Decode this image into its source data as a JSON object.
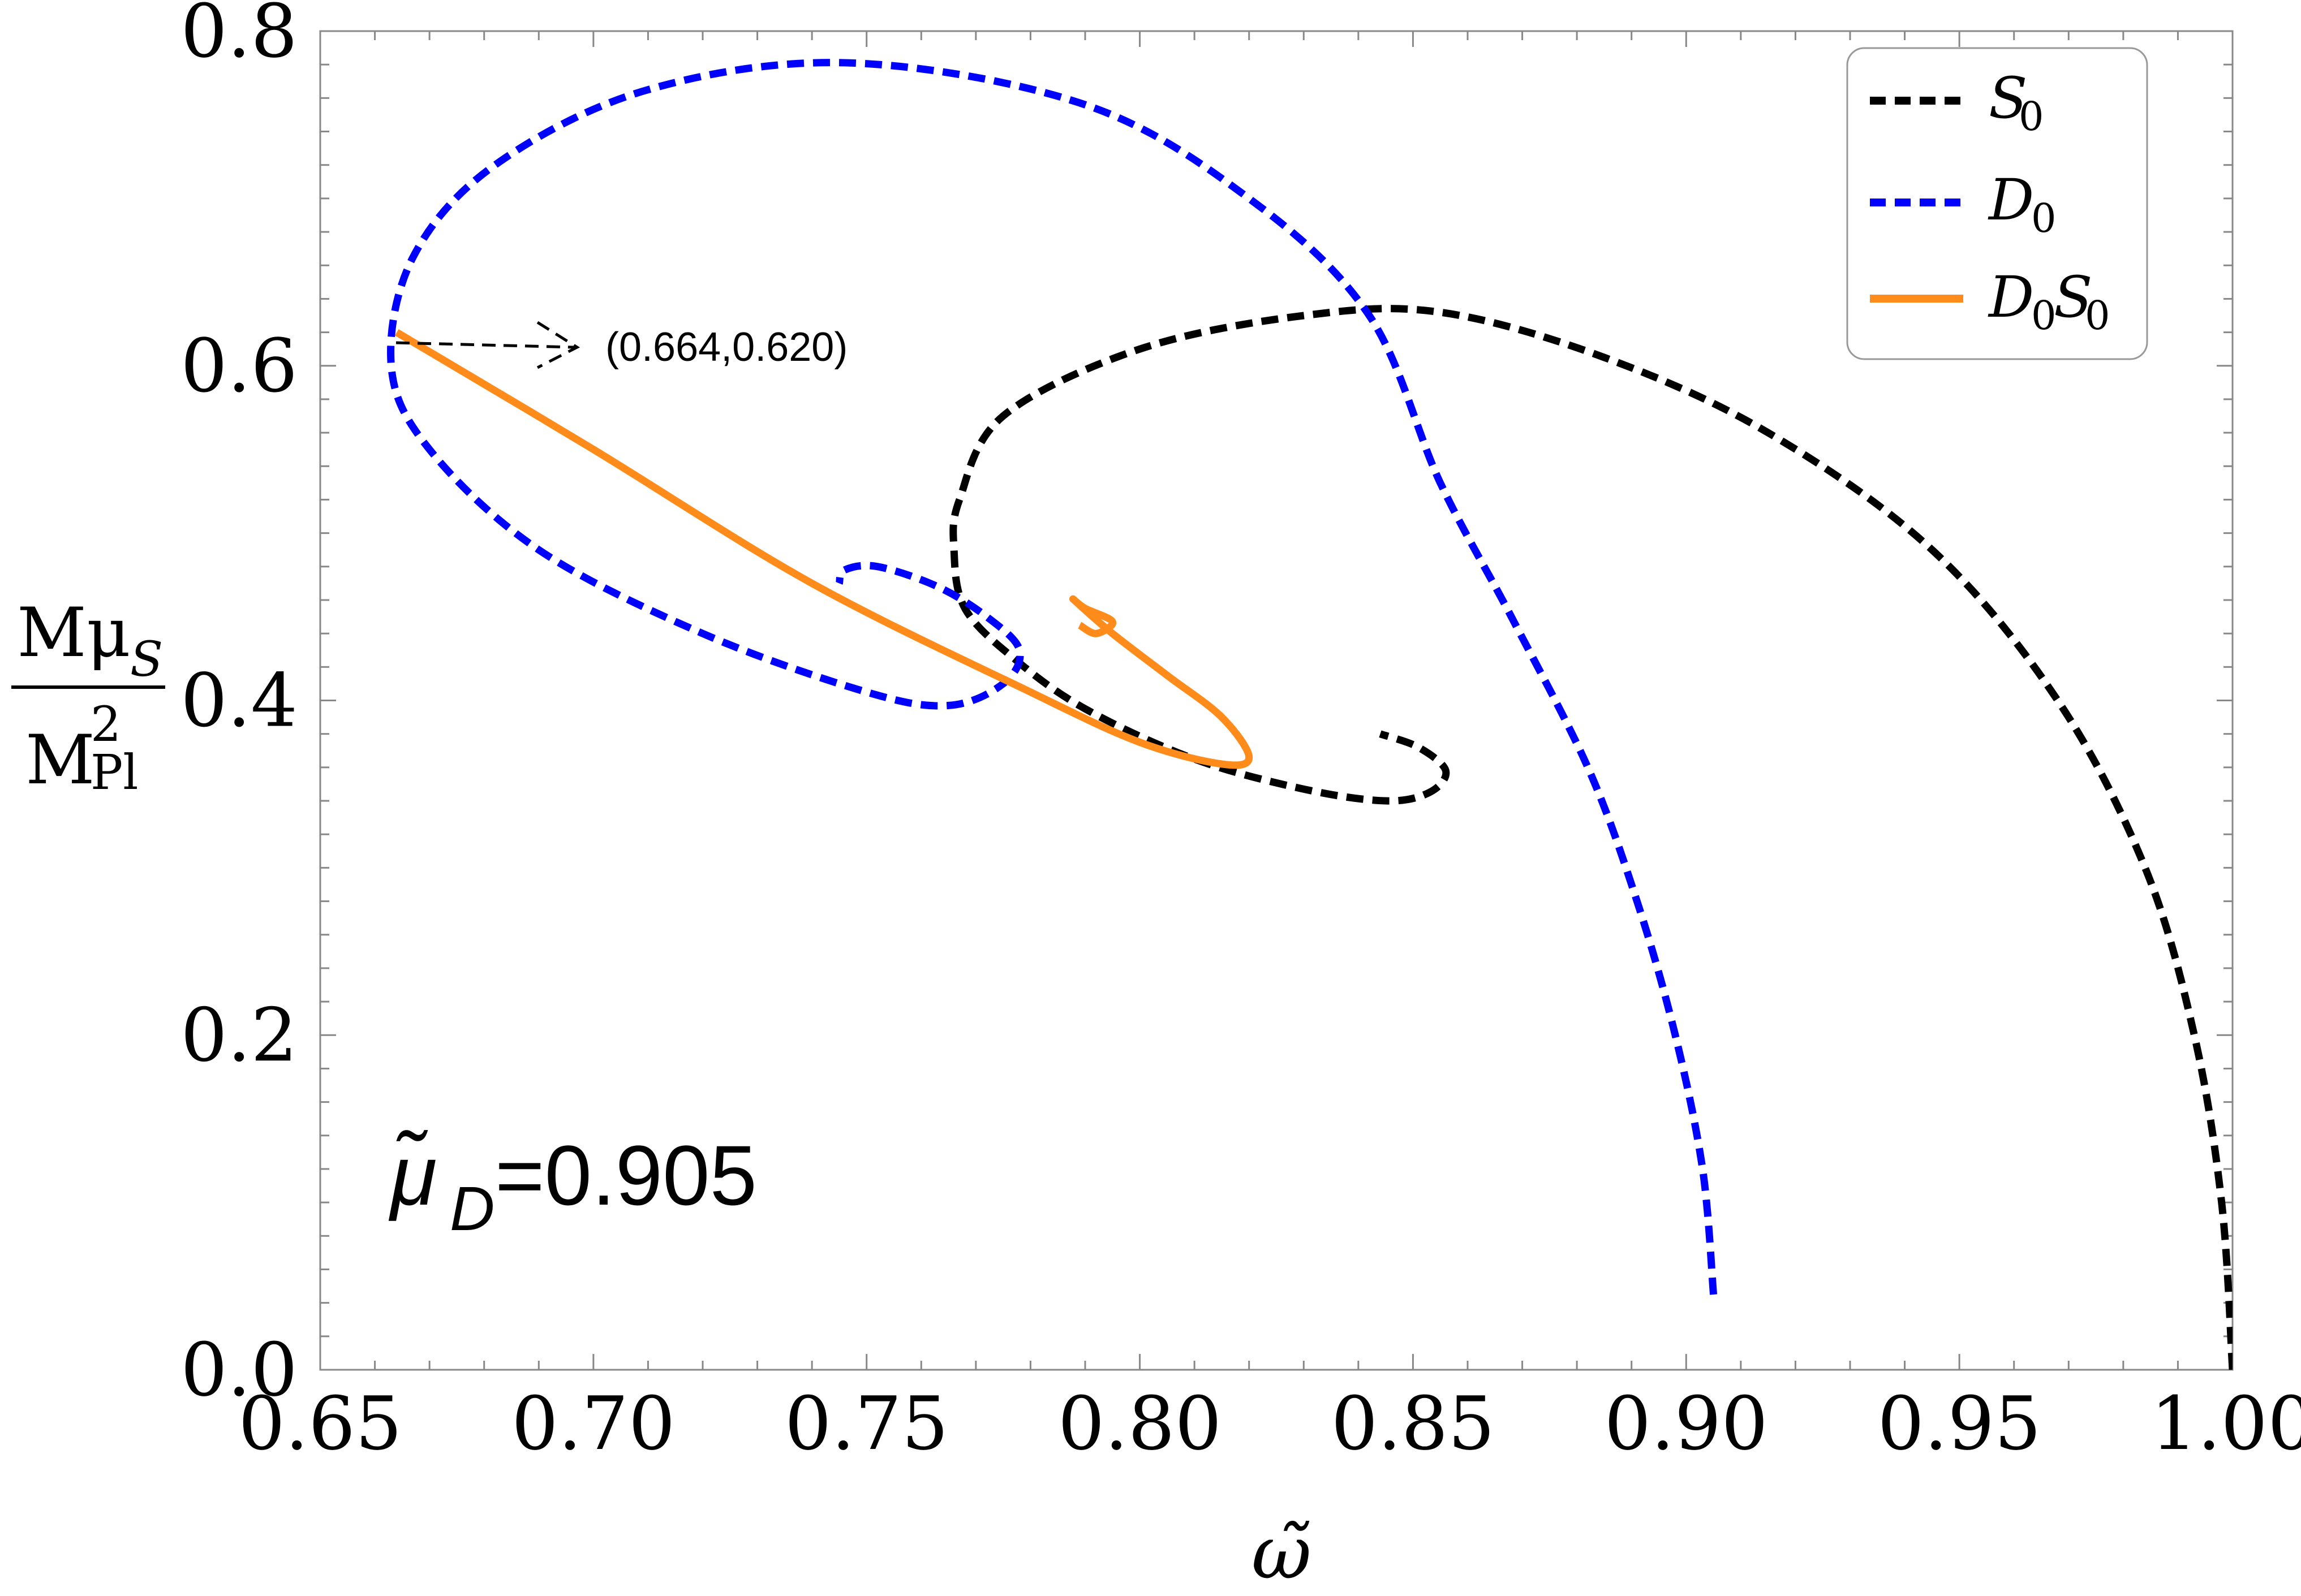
{
  "chart_data": {
    "type": "line",
    "xlabel": "ω̃",
    "ylabel": {
      "numerator": "Mμ",
      "numerator_sub": "S",
      "denominator": "M",
      "denominator_sup": "2",
      "denominator_sub": "Pl"
    },
    "xlim": [
      0.65,
      1.0
    ],
    "ylim": [
      0.0,
      0.8
    ],
    "x_ticks": [
      0.65,
      0.7,
      0.75,
      0.8,
      0.85,
      0.9,
      0.95,
      1.0
    ],
    "x_tick_labels": [
      "0.65",
      "0.70",
      "0.75",
      "0.80",
      "0.85",
      "0.90",
      "0.95",
      "1.00"
    ],
    "y_ticks": [
      0.0,
      0.2,
      0.4,
      0.6,
      0.8
    ],
    "y_tick_labels": [
      "0.0",
      "0.2",
      "0.4",
      "0.6",
      "0.8"
    ],
    "grid": false,
    "frame": "box",
    "legend_position": "top-right",
    "annotation": {
      "text": "(0.664,0.620)",
      "point": [
        0.664,
        0.62
      ],
      "arrow": "dashed, pointing right"
    },
    "parameter_label": {
      "symbol": "μ̃",
      "subscript": "D",
      "value": "=0.905"
    },
    "series": [
      {
        "name": "S",
        "name_sub": "0",
        "color": "#000000",
        "style": "dashed",
        "points": [
          [
            1.0,
            0.0
          ],
          [
            0.998,
            0.1
          ],
          [
            0.993,
            0.2
          ],
          [
            0.984,
            0.3
          ],
          [
            0.968,
            0.4
          ],
          [
            0.945,
            0.49
          ],
          [
            0.915,
            0.56
          ],
          [
            0.885,
            0.605
          ],
          [
            0.855,
            0.632
          ],
          [
            0.83,
            0.63
          ],
          [
            0.8,
            0.61
          ],
          [
            0.775,
            0.57
          ],
          [
            0.767,
            0.52
          ],
          [
            0.766,
            0.49
          ],
          [
            0.768,
            0.455
          ],
          [
            0.777,
            0.425
          ],
          [
            0.79,
            0.395
          ],
          [
            0.81,
            0.365
          ],
          [
            0.83,
            0.347
          ],
          [
            0.845,
            0.34
          ],
          [
            0.853,
            0.345
          ],
          [
            0.856,
            0.358
          ],
          [
            0.851,
            0.372
          ],
          [
            0.844,
            0.38
          ]
        ]
      },
      {
        "name": "D",
        "name_sub": "0",
        "color": "#0000ff",
        "style": "dashed",
        "points": [
          [
            0.905,
            0.045
          ],
          [
            0.903,
            0.12
          ],
          [
            0.898,
            0.2
          ],
          [
            0.891,
            0.28
          ],
          [
            0.882,
            0.36
          ],
          [
            0.868,
            0.45
          ],
          [
            0.855,
            0.53
          ],
          [
            0.842,
            0.63
          ],
          [
            0.82,
            0.7
          ],
          [
            0.79,
            0.756
          ],
          [
            0.747,
            0.781
          ],
          [
            0.71,
            0.765
          ],
          [
            0.682,
            0.72
          ],
          [
            0.667,
            0.665
          ],
          [
            0.663,
            0.6
          ],
          [
            0.67,
            0.55
          ],
          [
            0.69,
            0.49
          ],
          [
            0.72,
            0.44
          ],
          [
            0.75,
            0.405
          ],
          [
            0.765,
            0.397
          ],
          [
            0.775,
            0.41
          ],
          [
            0.778,
            0.43
          ],
          [
            0.772,
            0.45
          ],
          [
            0.763,
            0.468
          ],
          [
            0.752,
            0.48
          ],
          [
            0.746,
            0.478
          ],
          [
            0.745,
            0.47
          ]
        ]
      },
      {
        "name": "D",
        "name_sub": "0",
        "name_tail": "S",
        "name_tail_sub": "0",
        "color": "#ff8c1a",
        "style": "solid",
        "points": [
          [
            0.664,
            0.62
          ],
          [
            0.7,
            0.55
          ],
          [
            0.74,
            0.47
          ],
          [
            0.78,
            0.405
          ],
          [
            0.8,
            0.375
          ],
          [
            0.815,
            0.362
          ],
          [
            0.82,
            0.366
          ],
          [
            0.815,
            0.39
          ],
          [
            0.805,
            0.415
          ],
          [
            0.795,
            0.44
          ],
          [
            0.788,
            0.46
          ],
          [
            0.79,
            0.455
          ],
          [
            0.795,
            0.447
          ],
          [
            0.792,
            0.44
          ],
          [
            0.789,
            0.445
          ]
        ]
      }
    ]
  }
}
